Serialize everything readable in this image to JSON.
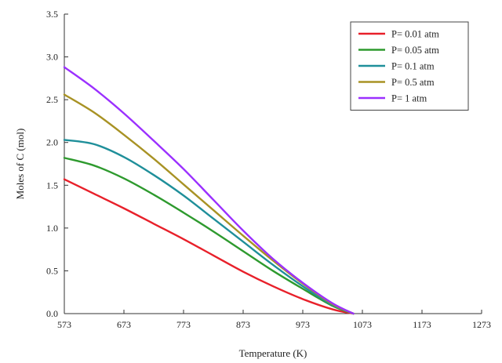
{
  "chart_data": {
    "type": "line",
    "title": "",
    "xlabel": "Temperature (K)",
    "ylabel": "Moles of  C (mol)",
    "xlim": [
      573,
      1273
    ],
    "ylim": [
      0,
      3.5
    ],
    "xticks": [
      "573",
      "673",
      "773",
      "873",
      "973",
      "1073",
      "1173",
      "1273"
    ],
    "yticks": [
      "0.0",
      "0.5",
      "1.0",
      "1.5",
      "2.0",
      "2.5",
      "3.0",
      "3.5"
    ],
    "grid": false,
    "legend_position": "top-right",
    "x": [
      573,
      623,
      673,
      723,
      773,
      823,
      873,
      923,
      973,
      1023,
      1058
    ],
    "series": [
      {
        "name": "P= 0.01 atm",
        "color": "#e8202a",
        "values": [
          1.57,
          1.4,
          1.23,
          1.05,
          0.87,
          0.68,
          0.49,
          0.32,
          0.17,
          0.05,
          0.0
        ]
      },
      {
        "name": "P= 0.05 atm",
        "color": "#2e9a2e",
        "values": [
          1.82,
          1.73,
          1.58,
          1.39,
          1.18,
          0.96,
          0.73,
          0.5,
          0.29,
          0.09,
          0.0
        ]
      },
      {
        "name": "P= 0.1 atm",
        "color": "#1f8f9a",
        "values": [
          2.03,
          1.98,
          1.83,
          1.62,
          1.38,
          1.11,
          0.84,
          0.57,
          0.32,
          0.1,
          0.0
        ]
      },
      {
        "name": "P= 0.5 atm",
        "color": "#a89224",
        "values": [
          2.56,
          2.35,
          2.09,
          1.81,
          1.51,
          1.21,
          0.91,
          0.62,
          0.35,
          0.11,
          0.0
        ]
      },
      {
        "name": "P= 1 atm",
        "color": "#9b30ff",
        "values": [
          2.88,
          2.63,
          2.34,
          2.02,
          1.69,
          1.33,
          0.97,
          0.64,
          0.36,
          0.12,
          0.0
        ]
      }
    ]
  }
}
